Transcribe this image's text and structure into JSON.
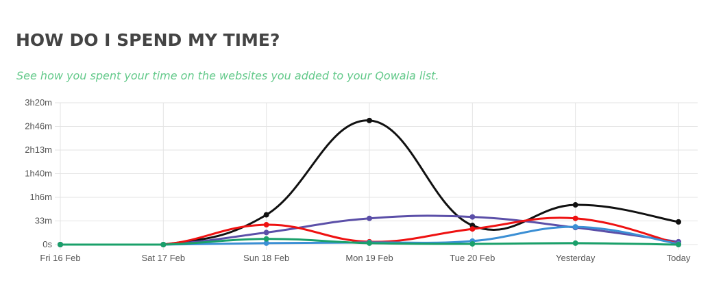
{
  "header": {
    "title": "HOW DO I SPEND MY TIME?",
    "subtitle": "See how you spent your time on the websites you added to your Qowala list."
  },
  "chart_data": {
    "type": "line",
    "title": "",
    "xlabel": "",
    "ylabel": "",
    "categories": [
      "Fri 16 Feb",
      "Sat 17 Feb",
      "Sun 18 Feb",
      "Mon 19 Feb",
      "Tue 20 Feb",
      "Yesterday",
      "Today"
    ],
    "y_tick_labels": [
      "0s",
      "33m",
      "1h6m",
      "1h40m",
      "2h13m",
      "2h46m",
      "3h20m"
    ],
    "ylim_minutes": [
      0,
      200
    ],
    "grid": true,
    "legend": "none",
    "series": [
      {
        "color": "#111111",
        "values": [
          0,
          0,
          42,
          175,
          27,
          56,
          32
        ]
      },
      {
        "color": "#5b4fa8",
        "values": [
          0,
          0,
          17,
          37,
          39,
          24,
          4
        ]
      },
      {
        "color": "#ee1111",
        "values": [
          0,
          0,
          28,
          4,
          22,
          37,
          1
        ]
      },
      {
        "color": "#3b8fd4",
        "values": [
          0,
          0,
          2,
          3,
          5,
          25,
          1
        ]
      },
      {
        "color": "#1aa06a",
        "values": [
          0,
          0,
          8,
          2,
          1,
          2,
          0
        ]
      }
    ]
  }
}
